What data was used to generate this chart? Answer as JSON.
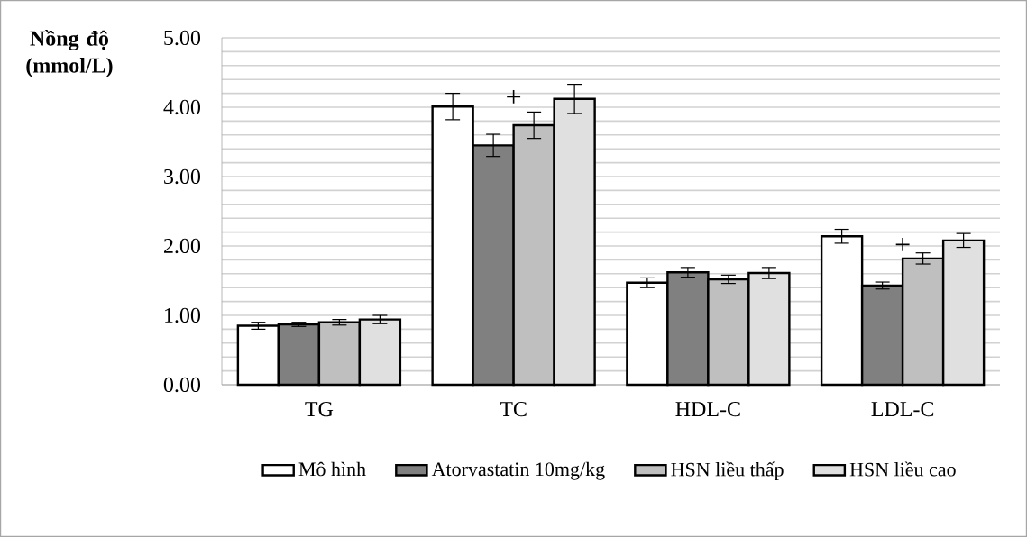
{
  "chart_data": {
    "type": "bar",
    "ylabel": "Nồng độ (mmol/L)",
    "categories": [
      "TG",
      "TC",
      "HDL-C",
      "LDL-C"
    ],
    "series": [
      {
        "name": "Mô hình",
        "color": "#ffffff",
        "values": [
          0.85,
          4.01,
          1.47,
          2.14
        ],
        "errors": [
          0.05,
          0.19,
          0.07,
          0.1
        ]
      },
      {
        "name": "Atorvastatin 10mg/kg",
        "color": "#808080",
        "values": [
          0.87,
          3.45,
          1.62,
          1.43
        ],
        "errors": [
          0.03,
          0.16,
          0.07,
          0.05
        ]
      },
      {
        "name": "HSN liều thấp",
        "color": "#bfbfbf",
        "values": [
          0.9,
          3.74,
          1.52,
          1.82
        ],
        "errors": [
          0.04,
          0.19,
          0.06,
          0.08
        ]
      },
      {
        "name": "HSN liều cao",
        "color": "#e0e0e0",
        "values": [
          0.94,
          4.12,
          1.61,
          2.08
        ],
        "errors": [
          0.06,
          0.21,
          0.08,
          0.1
        ]
      }
    ],
    "ylim": [
      0,
      5
    ],
    "yticks": [
      {
        "value": 0,
        "label": "0.00"
      },
      {
        "value": 0.2,
        "label": null
      },
      {
        "value": 0.4,
        "label": null
      },
      {
        "value": 0.6,
        "label": null
      },
      {
        "value": 0.8,
        "label": null
      },
      {
        "value": 1,
        "label": "1.00"
      },
      {
        "value": 1.2,
        "label": null
      },
      {
        "value": 1.4,
        "label": null
      },
      {
        "value": 1.6,
        "label": null
      },
      {
        "value": 1.8,
        "label": null
      },
      {
        "value": 2,
        "label": "2.00"
      },
      {
        "value": 2.2,
        "label": null
      },
      {
        "value": 2.4,
        "label": null
      },
      {
        "value": 2.6,
        "label": null
      },
      {
        "value": 2.8,
        "label": null
      },
      {
        "value": 3,
        "label": "3.00"
      },
      {
        "value": 3.2,
        "label": null
      },
      {
        "value": 3.4,
        "label": null
      },
      {
        "value": 3.6,
        "label": null
      },
      {
        "value": 3.8,
        "label": null
      },
      {
        "value": 4,
        "label": "4.00"
      },
      {
        "value": 4.2,
        "label": null
      },
      {
        "value": 4.4,
        "label": null
      },
      {
        "value": 4.6,
        "label": null
      },
      {
        "value": 4.8,
        "label": null
      },
      {
        "value": 5,
        "label": "5.00"
      }
    ],
    "annotations": [
      "+",
      "+"
    ],
    "grid": "y",
    "legend": "bottom"
  }
}
